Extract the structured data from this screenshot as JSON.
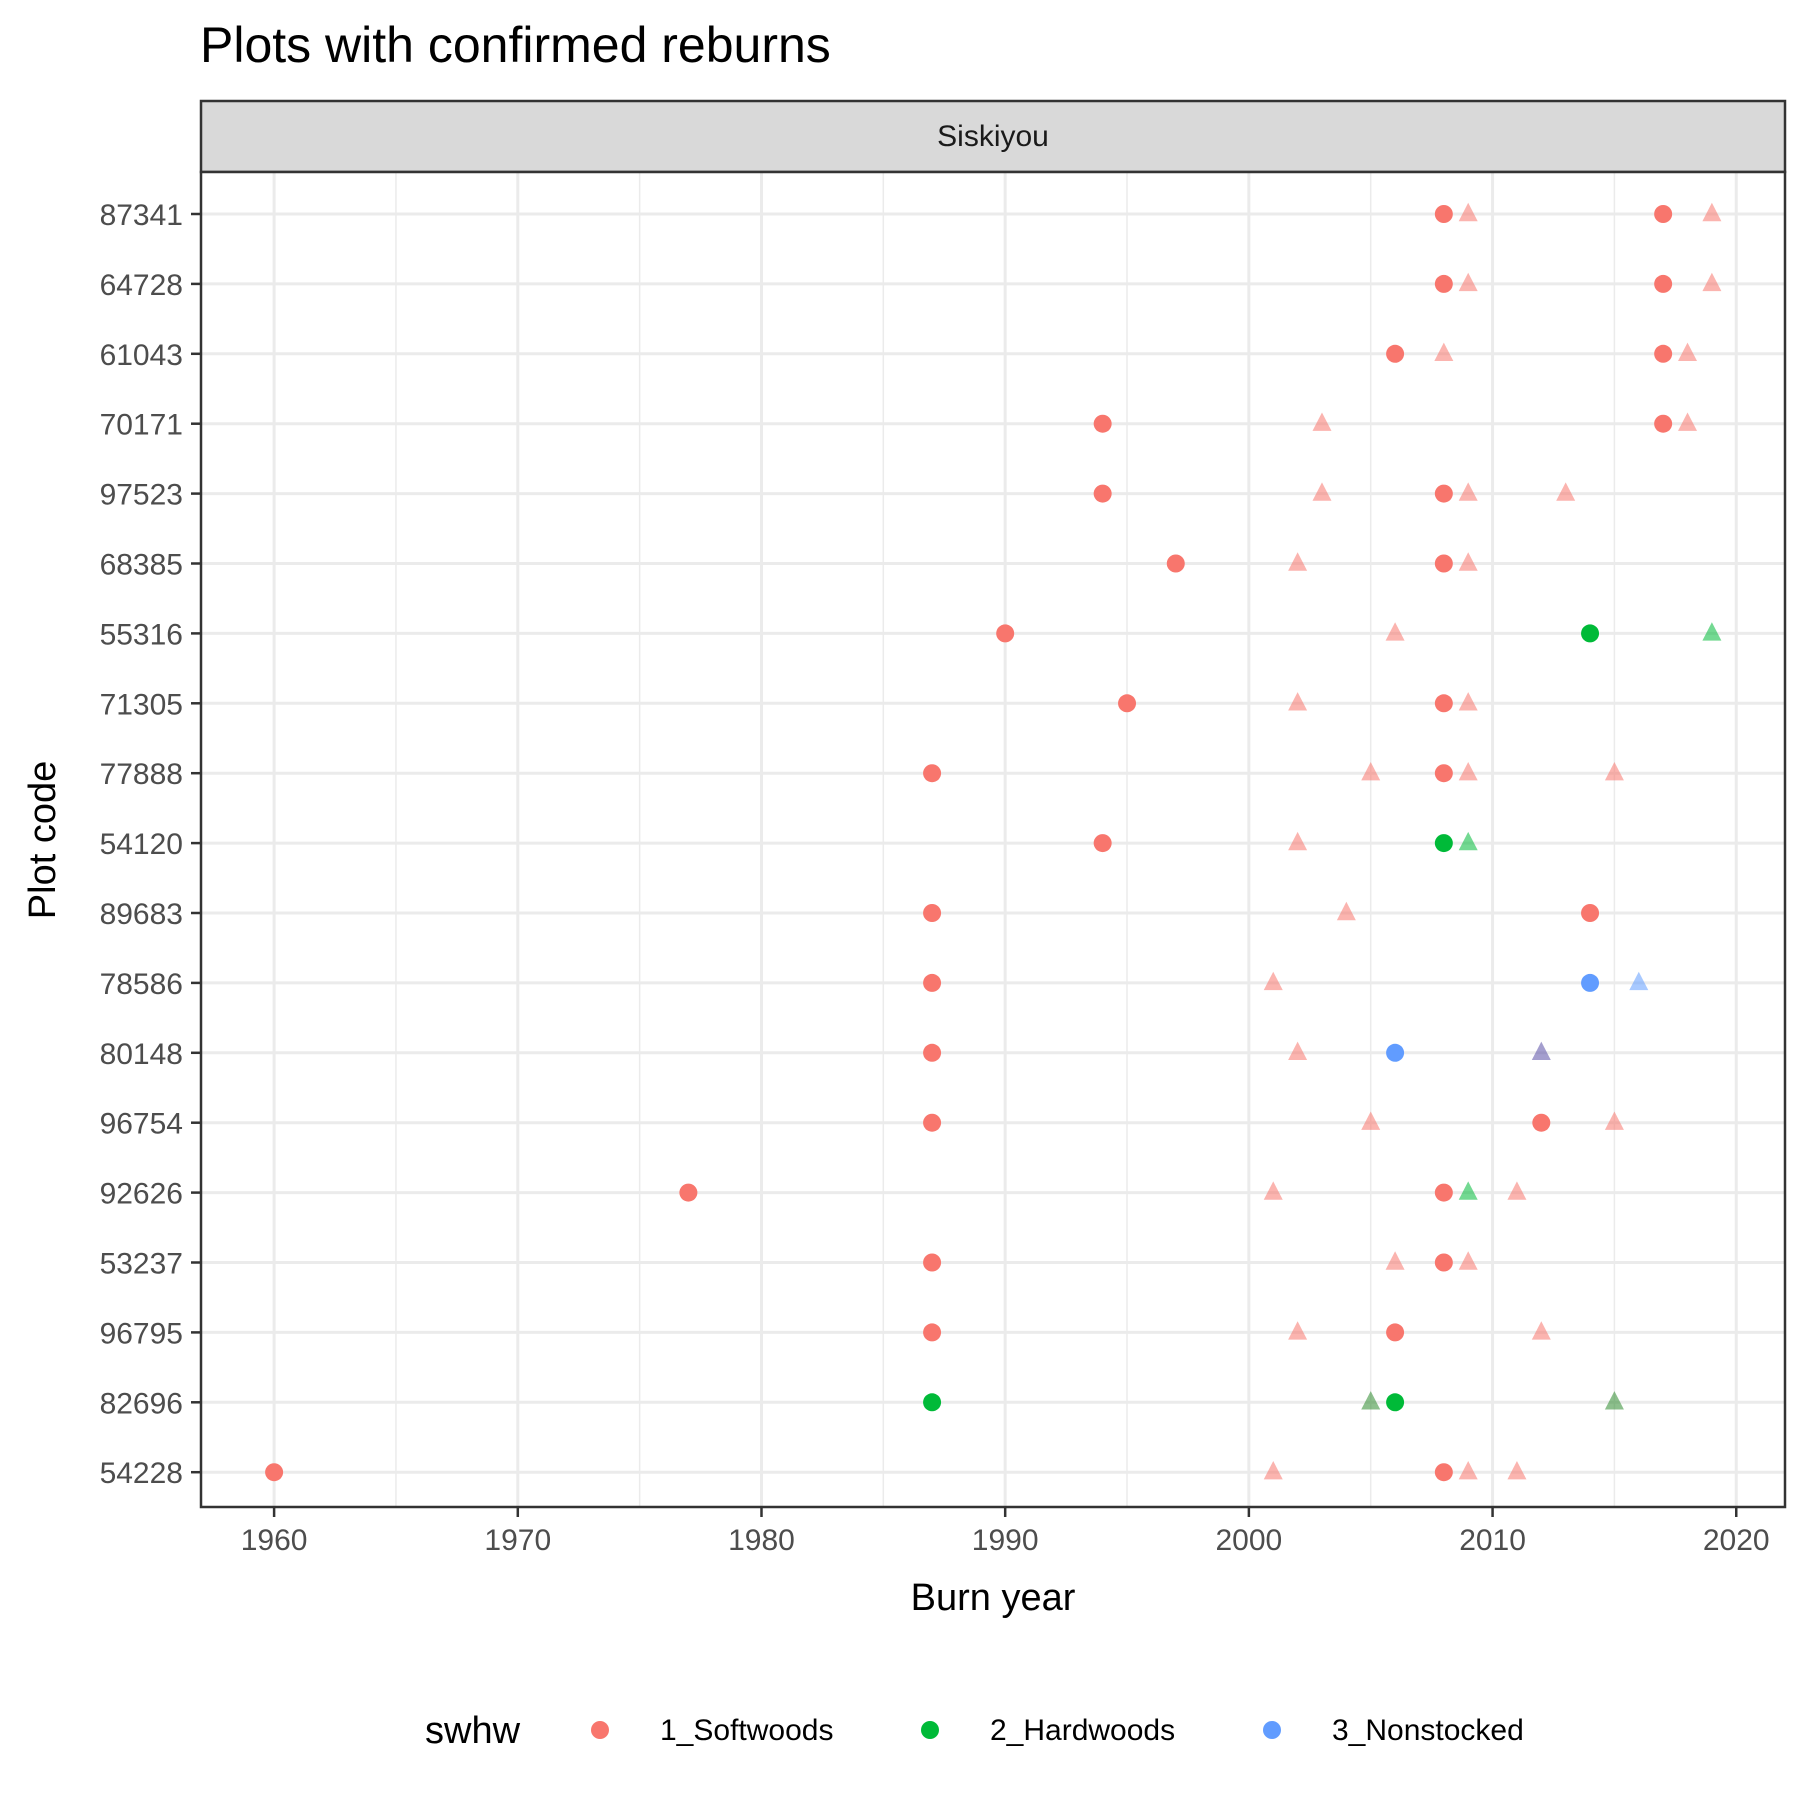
{
  "chart_data": {
    "type": "scatter",
    "title": "Plots with confirmed reburns",
    "facet": "Siskiyou",
    "xlabel": "Burn year",
    "ylabel": "Plot code",
    "xlim": [
      1957,
      2022
    ],
    "x_ticks": [
      1960,
      1970,
      1980,
      1990,
      2000,
      2010,
      2020
    ],
    "y_categories": [
      "87341",
      "64728",
      "61043",
      "70171",
      "97523",
      "68385",
      "55316",
      "71305",
      "77888",
      "54120",
      "89683",
      "78586",
      "80148",
      "96754",
      "92626",
      "53237",
      "96795",
      "82696",
      "54228"
    ],
    "grid": true,
    "legend": {
      "title": "swhw",
      "position": "bottom",
      "entries": [
        {
          "label": "1_Softwoods",
          "color": "#F8766D"
        },
        {
          "label": "2_Hardwoods",
          "color": "#00BA38"
        },
        {
          "label": "3_Nonstocked",
          "color": "#619CFF"
        }
      ]
    },
    "series": [
      {
        "name": "1_Softwoods",
        "marker": "circle",
        "color": "#F8766D",
        "points": [
          {
            "x": 2008,
            "y": "87341"
          },
          {
            "x": 2017,
            "y": "87341"
          },
          {
            "x": 2008,
            "y": "64728"
          },
          {
            "x": 2017,
            "y": "64728"
          },
          {
            "x": 2006,
            "y": "61043"
          },
          {
            "x": 2017,
            "y": "61043"
          },
          {
            "x": 1994,
            "y": "70171"
          },
          {
            "x": 2017,
            "y": "70171"
          },
          {
            "x": 1994,
            "y": "97523"
          },
          {
            "x": 2008,
            "y": "97523"
          },
          {
            "x": 1997,
            "y": "68385"
          },
          {
            "x": 2008,
            "y": "68385"
          },
          {
            "x": 1990,
            "y": "55316"
          },
          {
            "x": 1995,
            "y": "71305"
          },
          {
            "x": 2008,
            "y": "71305"
          },
          {
            "x": 1987,
            "y": "77888"
          },
          {
            "x": 2008,
            "y": "77888"
          },
          {
            "x": 1994,
            "y": "54120"
          },
          {
            "x": 1987,
            "y": "89683"
          },
          {
            "x": 2014,
            "y": "89683"
          },
          {
            "x": 1987,
            "y": "78586"
          },
          {
            "x": 1987,
            "y": "80148"
          },
          {
            "x": 1987,
            "y": "96754"
          },
          {
            "x": 2012,
            "y": "96754"
          },
          {
            "x": 1977,
            "y": "92626"
          },
          {
            "x": 2008,
            "y": "92626"
          },
          {
            "x": 1987,
            "y": "53237"
          },
          {
            "x": 2008,
            "y": "53237"
          },
          {
            "x": 1987,
            "y": "96795"
          },
          {
            "x": 2006,
            "y": "96795"
          },
          {
            "x": 1960,
            "y": "54228"
          },
          {
            "x": 2008,
            "y": "54228"
          }
        ]
      },
      {
        "name": "2_Hardwoods",
        "marker": "circle",
        "color": "#00BA38",
        "points": [
          {
            "x": 2014,
            "y": "55316"
          },
          {
            "x": 2008,
            "y": "54120"
          },
          {
            "x": 1987,
            "y": "82696"
          },
          {
            "x": 2006,
            "y": "82696"
          }
        ]
      },
      {
        "name": "3_Nonstocked",
        "marker": "circle",
        "color": "#619CFF",
        "points": [
          {
            "x": 2014,
            "y": "78586"
          },
          {
            "x": 2006,
            "y": "80148"
          }
        ]
      },
      {
        "marker": "triangle",
        "points": [
          {
            "x": 2009,
            "y": "87341",
            "color": "#F8766D"
          },
          {
            "x": 2019,
            "y": "87341",
            "color": "#F8766D"
          },
          {
            "x": 2009,
            "y": "64728",
            "color": "#F8766D"
          },
          {
            "x": 2019,
            "y": "64728",
            "color": "#F8766D"
          },
          {
            "x": 2008,
            "y": "61043",
            "color": "#F8766D"
          },
          {
            "x": 2018,
            "y": "61043",
            "color": "#F8766D"
          },
          {
            "x": 2003,
            "y": "70171",
            "color": "#F8766D"
          },
          {
            "x": 2018,
            "y": "70171",
            "color": "#F8766D"
          },
          {
            "x": 2003,
            "y": "97523",
            "color": "#F8766D"
          },
          {
            "x": 2009,
            "y": "97523",
            "color": "#F8766D"
          },
          {
            "x": 2013,
            "y": "97523",
            "color": "#F8766D"
          },
          {
            "x": 2002,
            "y": "68385",
            "color": "#F8766D"
          },
          {
            "x": 2009,
            "y": "68385",
            "color": "#F8766D"
          },
          {
            "x": 2006,
            "y": "55316",
            "color": "#F8766D"
          },
          {
            "x": 2019,
            "y": "55316",
            "color": "#00BA38"
          },
          {
            "x": 2002,
            "y": "71305",
            "color": "#F8766D"
          },
          {
            "x": 2009,
            "y": "71305",
            "color": "#F8766D"
          },
          {
            "x": 2005,
            "y": "77888",
            "color": "#F8766D"
          },
          {
            "x": 2009,
            "y": "77888",
            "color": "#F8766D"
          },
          {
            "x": 2015,
            "y": "77888",
            "color": "#F8766D"
          },
          {
            "x": 2002,
            "y": "54120",
            "color": "#F8766D"
          },
          {
            "x": 2009,
            "y": "54120",
            "color": "#00BA38"
          },
          {
            "x": 2004,
            "y": "89683",
            "color": "#F8766D"
          },
          {
            "x": 2001,
            "y": "78586",
            "color": "#F8766D"
          },
          {
            "x": 2016,
            "y": "78586",
            "color": "#619CFF"
          },
          {
            "x": 2002,
            "y": "80148",
            "color": "#F8766D"
          },
          {
            "x": 2012,
            "y": "80148",
            "color": "#5A4FA6"
          },
          {
            "x": 2005,
            "y": "96754",
            "color": "#F8766D"
          },
          {
            "x": 2015,
            "y": "96754",
            "color": "#F8766D"
          },
          {
            "x": 2001,
            "y": "92626",
            "color": "#F8766D"
          },
          {
            "x": 2009,
            "y": "92626",
            "color": "#00BA38"
          },
          {
            "x": 2011,
            "y": "92626",
            "color": "#F8766D"
          },
          {
            "x": 2006,
            "y": "53237",
            "color": "#F8766D"
          },
          {
            "x": 2009,
            "y": "53237",
            "color": "#F8766D"
          },
          {
            "x": 2002,
            "y": "96795",
            "color": "#F8766D"
          },
          {
            "x": 2012,
            "y": "96795",
            "color": "#F8766D"
          },
          {
            "x": 2005,
            "y": "82696",
            "color": "#2E8B2E"
          },
          {
            "x": 2015,
            "y": "82696",
            "color": "#2E8B2E"
          },
          {
            "x": 2001,
            "y": "54228",
            "color": "#F8766D"
          },
          {
            "x": 2009,
            "y": "54228",
            "color": "#F8766D"
          },
          {
            "x": 2011,
            "y": "54228",
            "color": "#F8766D"
          }
        ]
      }
    ]
  }
}
